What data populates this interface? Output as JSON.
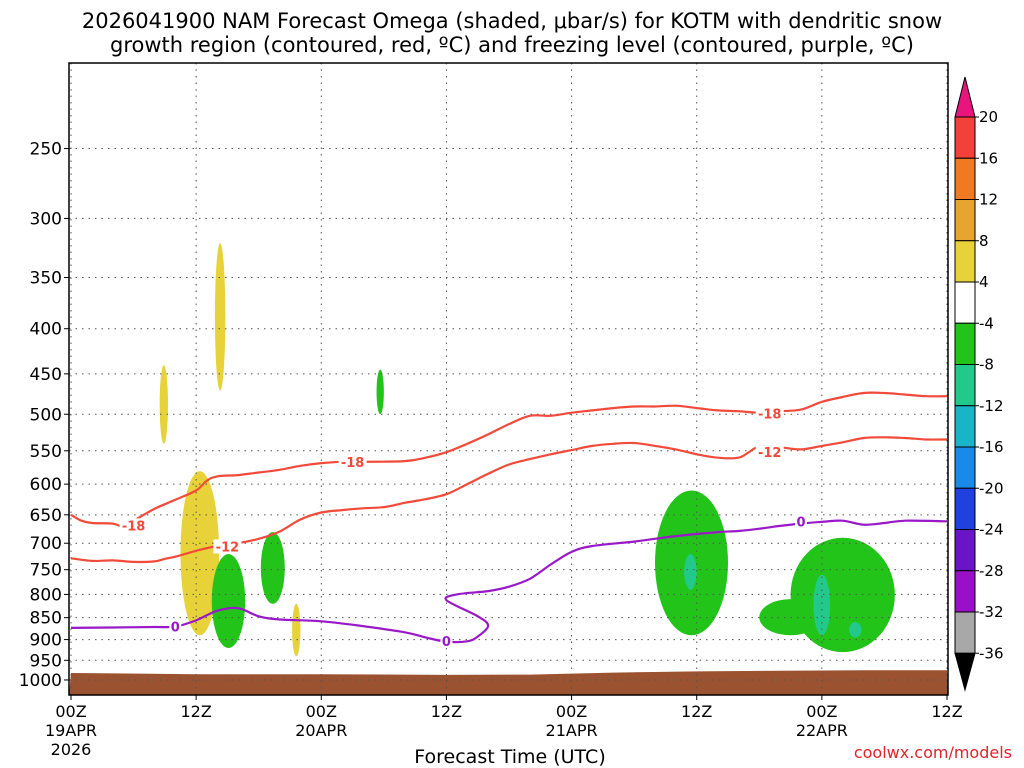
{
  "chart_data": {
    "type": "heatmap",
    "title_line1": "2026041900 NAM Forecast Omega (shaded, μbar/s) for KOTM with dendritic snow",
    "title_line2": "growth region (contoured, red, ºC) and freezing level (contoured, purple, ºC)",
    "xlabel": "Forecast Time (UTC)",
    "ylabel": "",
    "y_axis": {
      "scale": "log-pressure",
      "inverted": true,
      "ticks": [
        250,
        300,
        350,
        400,
        450,
        500,
        550,
        600,
        650,
        700,
        750,
        800,
        850,
        900,
        950,
        1000
      ]
    },
    "x_axis": {
      "range_hours": [
        0,
        84
      ],
      "ticks": [
        {
          "hour": 0,
          "label": "00Z",
          "sub1": "19APR",
          "sub2": "2026"
        },
        {
          "hour": 12,
          "label": "12Z",
          "sub1": "",
          "sub2": ""
        },
        {
          "hour": 24,
          "label": "00Z",
          "sub1": "20APR",
          "sub2": ""
        },
        {
          "hour": 36,
          "label": "12Z",
          "sub1": "",
          "sub2": ""
        },
        {
          "hour": 48,
          "label": "00Z",
          "sub1": "21APR",
          "sub2": ""
        },
        {
          "hour": 60,
          "label": "12Z",
          "sub1": "",
          "sub2": ""
        },
        {
          "hour": 72,
          "label": "00Z",
          "sub1": "22APR",
          "sub2": ""
        },
        {
          "hour": 84,
          "label": "12Z",
          "sub1": "",
          "sub2": ""
        }
      ]
    },
    "grid": true,
    "colorbar": {
      "levels": [
        20,
        16,
        12,
        8,
        4,
        -4,
        -8,
        -12,
        -16,
        -20,
        -24,
        -28,
        -32,
        -36
      ],
      "colors": [
        "#e8157f",
        "#f2413a",
        "#f07a22",
        "#e8a430",
        "#e8d23a",
        "#ffffff",
        "#22c41a",
        "#22c98a",
        "#1ab4c8",
        "#1a8ae8",
        "#2040e0",
        "#6a14c8",
        "#9a10c8",
        "#a8a8a8",
        "#000000"
      ]
    },
    "contours": [
      {
        "name": "-18",
        "color": "#f24a3a",
        "points": [
          [
            0,
            650
          ],
          [
            1,
            660
          ],
          [
            2,
            664
          ],
          [
            4,
            665
          ],
          [
            5,
            670
          ],
          [
            6,
            660
          ],
          [
            8,
            640
          ],
          [
            10,
            625
          ],
          [
            12,
            610
          ],
          [
            13,
            595
          ],
          [
            14,
            588
          ],
          [
            16,
            586
          ],
          [
            18,
            582
          ],
          [
            20,
            578
          ],
          [
            22,
            572
          ],
          [
            24,
            568
          ],
          [
            26,
            566
          ],
          [
            28,
            566
          ],
          [
            32,
            565
          ],
          [
            34,
            560
          ],
          [
            36,
            552
          ],
          [
            38,
            540
          ],
          [
            40,
            527
          ],
          [
            42,
            513
          ],
          [
            44,
            502
          ],
          [
            46,
            502
          ],
          [
            48,
            498
          ],
          [
            50,
            495
          ],
          [
            52,
            492
          ],
          [
            54,
            490
          ],
          [
            56,
            490
          ],
          [
            58,
            489
          ],
          [
            60,
            492
          ],
          [
            62,
            495
          ],
          [
            64,
            496
          ],
          [
            66,
            498
          ],
          [
            68,
            496
          ],
          [
            70,
            494
          ],
          [
            72,
            484
          ],
          [
            74,
            478
          ],
          [
            76,
            473
          ],
          [
            78,
            473
          ],
          [
            80,
            475
          ],
          [
            82,
            477
          ],
          [
            84,
            477
          ]
        ],
        "labels": [
          [
            6,
            668
          ],
          [
            27,
            566
          ],
          [
            67,
            499
          ]
        ]
      },
      {
        "name": "-12",
        "color": "#f24a3a",
        "points": [
          [
            0,
            728
          ],
          [
            2,
            733
          ],
          [
            4,
            732
          ],
          [
            6,
            735
          ],
          [
            8,
            734
          ],
          [
            9,
            729
          ],
          [
            10,
            725
          ],
          [
            12,
            714
          ],
          [
            14,
            705
          ],
          [
            16,
            700
          ],
          [
            18,
            692
          ],
          [
            20,
            679
          ],
          [
            22,
            658
          ],
          [
            24,
            646
          ],
          [
            26,
            642
          ],
          [
            28,
            639
          ],
          [
            30,
            637
          ],
          [
            32,
            630
          ],
          [
            34,
            624
          ],
          [
            36,
            616
          ],
          [
            38,
            600
          ],
          [
            40,
            584
          ],
          [
            42,
            570
          ],
          [
            44,
            562
          ],
          [
            46,
            555
          ],
          [
            48,
            549
          ],
          [
            50,
            543
          ],
          [
            52,
            540
          ],
          [
            54,
            539
          ],
          [
            56,
            543
          ],
          [
            58,
            548
          ],
          [
            60,
            555
          ],
          [
            62,
            560
          ],
          [
            64,
            560
          ],
          [
            65,
            552
          ],
          [
            66,
            544
          ],
          [
            68,
            545
          ],
          [
            70,
            548
          ],
          [
            72,
            543
          ],
          [
            74,
            538
          ],
          [
            76,
            532
          ],
          [
            78,
            531
          ],
          [
            80,
            532
          ],
          [
            82,
            534
          ],
          [
            84,
            534
          ]
        ],
        "labels": [
          [
            15,
            706
          ],
          [
            67,
            552
          ]
        ]
      },
      {
        "name": "0",
        "color": "#9a18c8",
        "points": [
          [
            0,
            873
          ],
          [
            4,
            872
          ],
          [
            8,
            871
          ],
          [
            10,
            870
          ],
          [
            12,
            856
          ],
          [
            14,
            835
          ],
          [
            16,
            829
          ],
          [
            18,
            847
          ],
          [
            20,
            854
          ],
          [
            24,
            858
          ],
          [
            28,
            869
          ],
          [
            32,
            883
          ],
          [
            34,
            895
          ],
          [
            36,
            905
          ],
          [
            38,
            904
          ],
          [
            39,
            893
          ],
          [
            40,
            868
          ],
          [
            39,
            847
          ],
          [
            36,
            812
          ],
          [
            37,
            800
          ],
          [
            40,
            793
          ],
          [
            42,
            784
          ],
          [
            44,
            768
          ],
          [
            46,
            740
          ],
          [
            48,
            716
          ],
          [
            50,
            705
          ],
          [
            54,
            697
          ],
          [
            58,
            687
          ],
          [
            62,
            680
          ],
          [
            64,
            678
          ],
          [
            66,
            674
          ],
          [
            68,
            669
          ],
          [
            70,
            665
          ],
          [
            72,
            662
          ],
          [
            74,
            660
          ],
          [
            76,
            667
          ],
          [
            78,
            664
          ],
          [
            80,
            660
          ],
          [
            84,
            661
          ]
        ],
        "labels": [
          [
            10,
            870
          ],
          [
            36,
            903
          ],
          [
            70,
            661
          ]
        ]
      }
    ],
    "shaded_regions": [
      {
        "value": 4,
        "color": "#e8d23a",
        "h": [
          13.8,
          14.8
        ],
        "p": [
          320,
          470
        ]
      },
      {
        "value": 4,
        "color": "#e8d23a",
        "h": [
          8.5,
          9.3
        ],
        "p": [
          440,
          540
        ]
      },
      {
        "value": 4,
        "color": "#e8d23a",
        "h": [
          10.5,
          14.2
        ],
        "p": [
          580,
          890
        ]
      },
      {
        "value": 4,
        "color": "#e8d23a",
        "h": [
          21.2,
          22.0
        ],
        "p": [
          820,
          940
        ]
      },
      {
        "value": -4,
        "color": "#22c41a",
        "h": [
          29.3,
          30.0
        ],
        "p": [
          445,
          500
        ]
      },
      {
        "value": -4,
        "color": "#22c41a",
        "h": [
          13.5,
          16.7
        ],
        "p": [
          720,
          920
        ]
      },
      {
        "value": -4,
        "color": "#22c41a",
        "h": [
          18.2,
          20.5
        ],
        "p": [
          680,
          820
        ]
      },
      {
        "value": -4,
        "color": "#22c41a",
        "h": [
          56.0,
          63.0
        ],
        "p": [
          610,
          890
        ]
      },
      {
        "value": -4,
        "color": "#22c41a",
        "h": [
          66.0,
          72.0
        ],
        "p": [
          810,
          890
        ]
      },
      {
        "value": -4,
        "color": "#22c41a",
        "h": [
          69.0,
          79.0
        ],
        "p": [
          690,
          930
        ]
      },
      {
        "value": -8,
        "color": "#22c98a",
        "h": [
          58.8,
          60.0
        ],
        "p": [
          720,
          790
        ]
      },
      {
        "value": -8,
        "color": "#22c98a",
        "h": [
          71.2,
          72.8
        ],
        "p": [
          760,
          890
        ]
      },
      {
        "value": -8,
        "color": "#22c98a",
        "h": [
          74.6,
          75.8
        ],
        "p": [
          860,
          895
        ]
      }
    ],
    "terrain": {
      "color": "#9b5230",
      "surface_p": [
        [
          0,
          982
        ],
        [
          12,
          985
        ],
        [
          24,
          985
        ],
        [
          36,
          987
        ],
        [
          44,
          986
        ],
        [
          52,
          981
        ],
        [
          60,
          978
        ],
        [
          68,
          976
        ],
        [
          76,
          975
        ],
        [
          84,
          975
        ]
      ]
    }
  },
  "credit": "coolwx.com/models"
}
